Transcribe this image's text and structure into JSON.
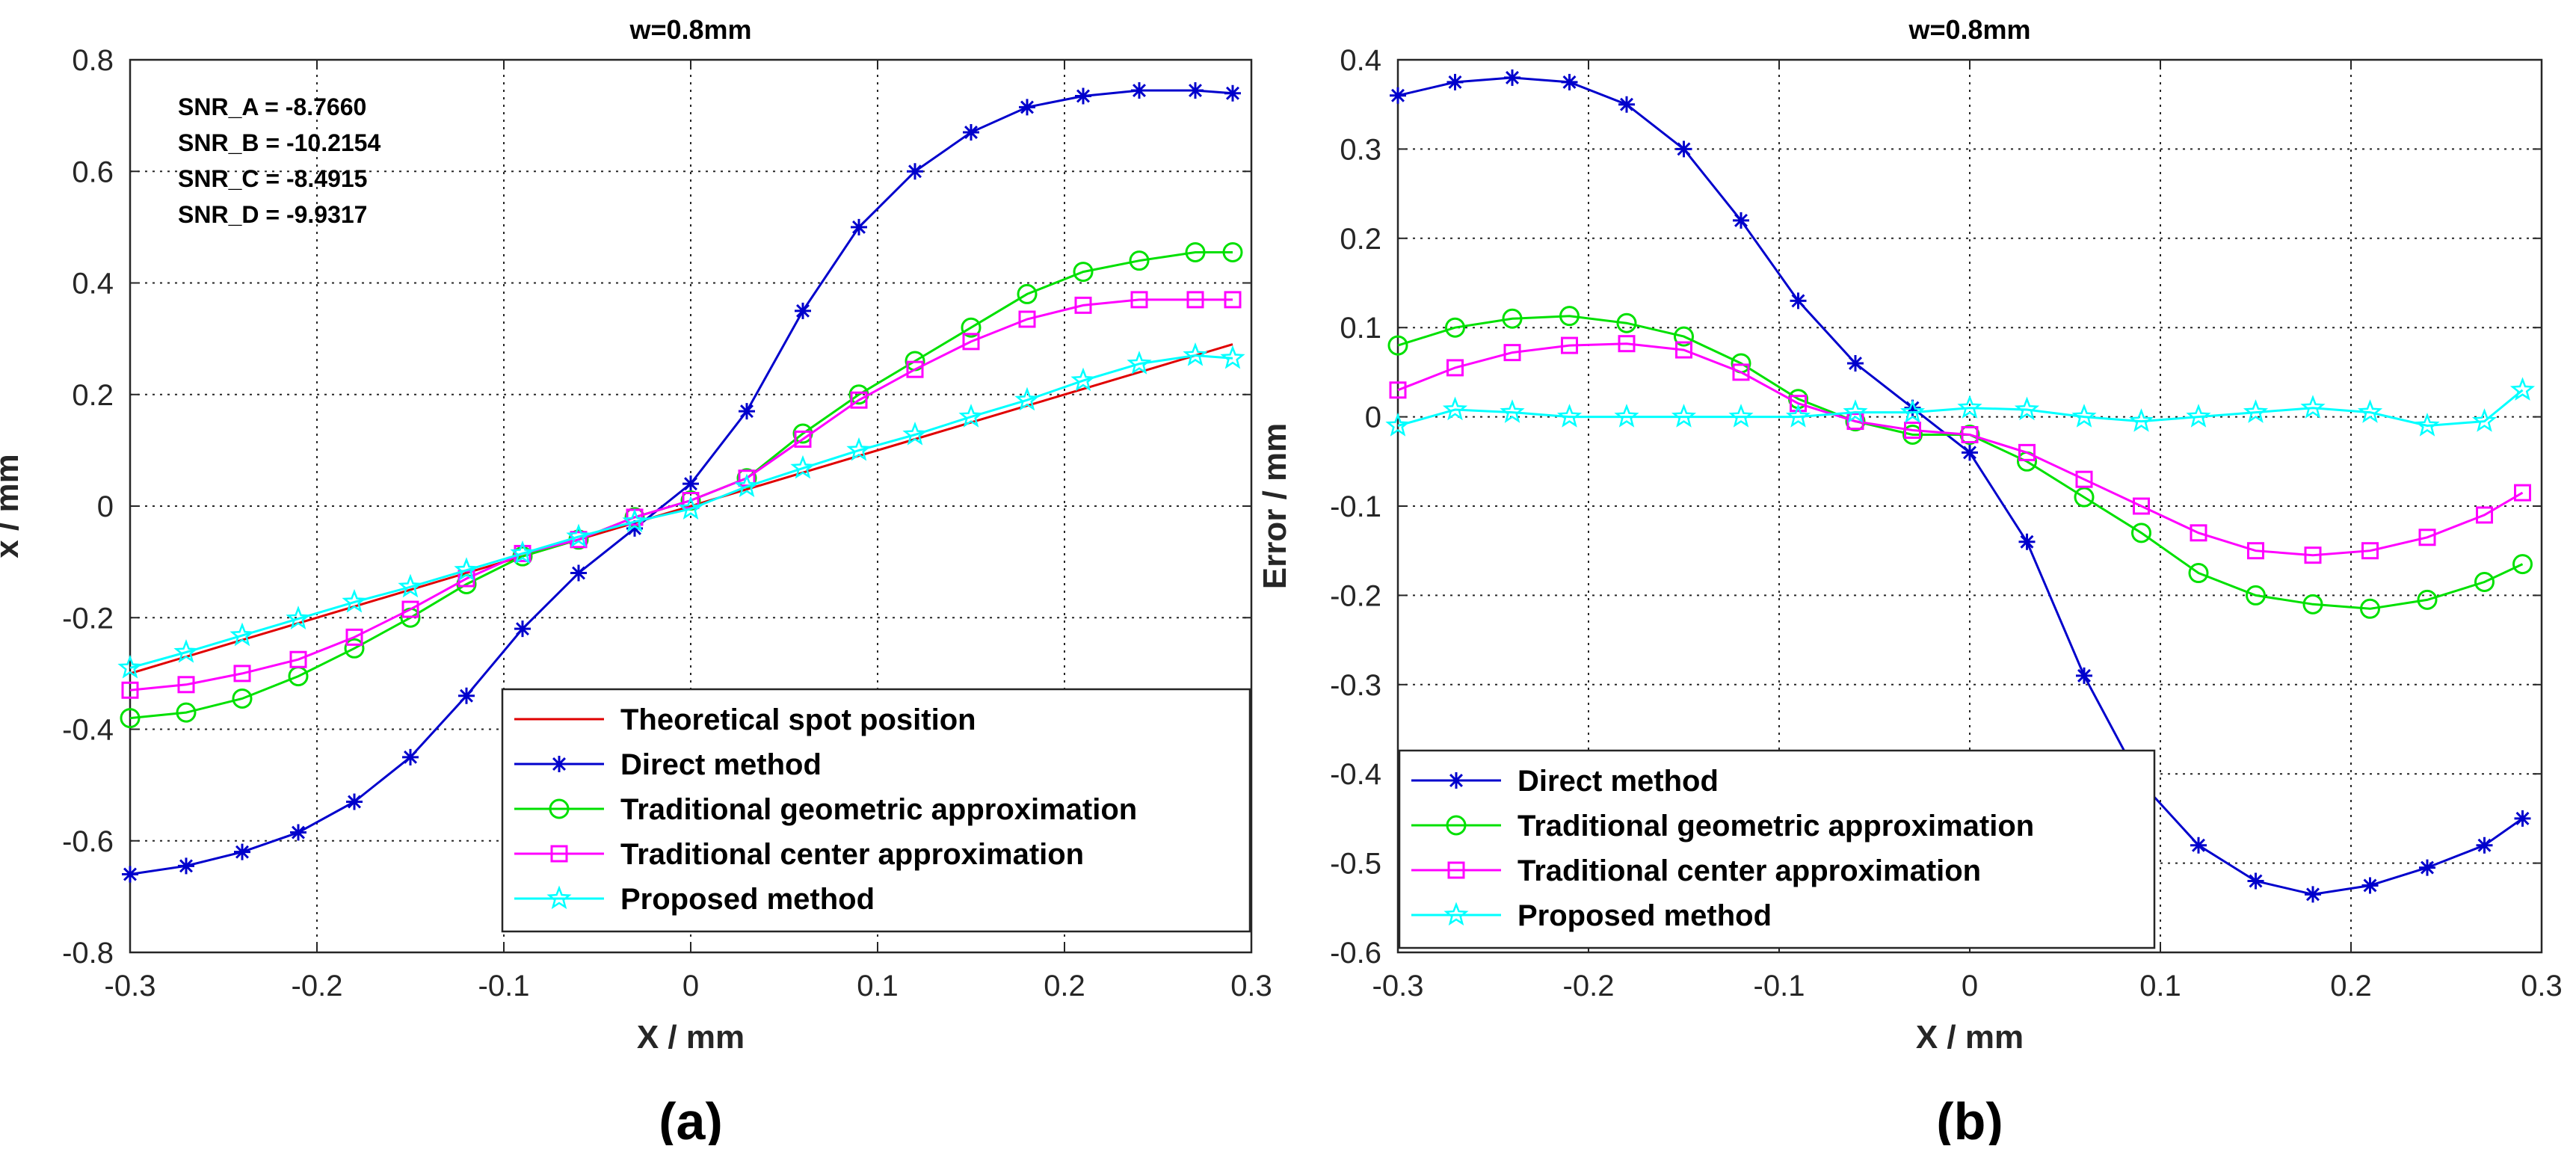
{
  "colors": {
    "theoretical": "#e00000",
    "direct": "#0000cc",
    "geometric": "#00e000",
    "center": "#ff00ff",
    "proposed": "#00ffff",
    "grid": "#262626",
    "axis": "#262626"
  },
  "chart_data": [
    {
      "type": "line",
      "panel_label": "(a)",
      "title": "w=0.8mm",
      "xlabel": "X / mm",
      "ylabel": "x / mm",
      "xlim": [
        -0.3,
        0.3
      ],
      "ylim": [
        -0.8,
        0.8
      ],
      "xticks": [
        -0.3,
        -0.2,
        -0.1,
        0,
        0.1,
        0.2,
        0.3
      ],
      "xtick_labels": [
        "-0.3",
        "-0.2",
        "-0.1",
        "0",
        "0.1",
        "0.2",
        "0.3"
      ],
      "yticks": [
        -0.8,
        -0.6,
        -0.4,
        -0.2,
        0,
        0.2,
        0.4,
        0.6,
        0.8
      ],
      "ytick_labels": [
        "-0.8",
        "-0.6",
        "-0.4",
        "-0.2",
        "0",
        "0.2",
        "0.4",
        "0.6",
        "0.8"
      ],
      "grid": true,
      "legend_position": "bottom-right",
      "annotations": [
        "SNR_A = -8.7660",
        "SNR_B = -10.2154",
        "SNR_C = -8.4915",
        "SNR_D = -9.9317"
      ],
      "x": [
        -0.3,
        -0.27,
        -0.24,
        -0.21,
        -0.18,
        -0.15,
        -0.12,
        -0.09,
        -0.06,
        -0.03,
        0,
        0.03,
        0.06,
        0.09,
        0.12,
        0.15,
        0.18,
        0.21,
        0.24,
        0.27,
        0.29
      ],
      "series": [
        {
          "name": "Theoretical spot position",
          "key": "theoretical",
          "marker": "none",
          "values": [
            -0.3,
            -0.27,
            -0.24,
            -0.21,
            -0.18,
            -0.15,
            -0.12,
            -0.09,
            -0.06,
            -0.03,
            0,
            0.03,
            0.06,
            0.09,
            0.12,
            0.15,
            0.18,
            0.21,
            0.24,
            0.27,
            0.29
          ]
        },
        {
          "name": "Direct method",
          "key": "direct",
          "marker": "asterisk",
          "values": [
            -0.66,
            -0.645,
            -0.62,
            -0.585,
            -0.53,
            -0.45,
            -0.34,
            -0.22,
            -0.12,
            -0.04,
            0.04,
            0.17,
            0.35,
            0.5,
            0.6,
            0.67,
            0.715,
            0.735,
            0.745,
            0.745,
            0.74
          ]
        },
        {
          "name": "Traditional geometric approximation",
          "key": "geometric",
          "marker": "circle",
          "values": [
            -0.38,
            -0.37,
            -0.345,
            -0.305,
            -0.255,
            -0.2,
            -0.14,
            -0.09,
            -0.06,
            -0.02,
            0.01,
            0.05,
            0.13,
            0.2,
            0.26,
            0.32,
            0.38,
            0.42,
            0.44,
            0.455,
            0.455
          ]
        },
        {
          "name": "Traditional center approximation",
          "key": "center",
          "marker": "square",
          "values": [
            -0.33,
            -0.32,
            -0.3,
            -0.275,
            -0.235,
            -0.185,
            -0.13,
            -0.085,
            -0.06,
            -0.02,
            0.01,
            0.05,
            0.12,
            0.19,
            0.245,
            0.295,
            0.335,
            0.36,
            0.37,
            0.37,
            0.37
          ]
        },
        {
          "name": "Proposed method",
          "key": "proposed",
          "marker": "pentagram",
          "values": [
            -0.29,
            -0.262,
            -0.232,
            -0.202,
            -0.172,
            -0.145,
            -0.115,
            -0.085,
            -0.055,
            -0.028,
            -0.005,
            0.035,
            0.068,
            0.1,
            0.128,
            0.16,
            0.19,
            0.225,
            0.255,
            0.27,
            0.265
          ]
        }
      ]
    },
    {
      "type": "line",
      "panel_label": "(b)",
      "title": "w=0.8mm",
      "xlabel": "X / mm",
      "ylabel": "Error / mm",
      "xlim": [
        -0.3,
        0.3
      ],
      "ylim": [
        -0.6,
        0.4
      ],
      "xticks": [
        -0.3,
        -0.2,
        -0.1,
        0,
        0.1,
        0.2,
        0.3
      ],
      "xtick_labels": [
        "-0.3",
        "-0.2",
        "-0.1",
        "0",
        "0.1",
        "0.2",
        "0.3"
      ],
      "yticks": [
        -0.6,
        -0.5,
        -0.4,
        -0.3,
        -0.2,
        -0.1,
        0,
        0.1,
        0.2,
        0.3,
        0.4
      ],
      "ytick_labels": [
        "-0.6",
        "-0.5",
        "-0.4",
        "-0.3",
        "-0.2",
        "-0.1",
        "0",
        "0.1",
        "0.2",
        "0.3",
        "0.4"
      ],
      "grid": true,
      "legend_position": "bottom-left",
      "x": [
        -0.3,
        -0.27,
        -0.24,
        -0.21,
        -0.18,
        -0.15,
        -0.12,
        -0.09,
        -0.06,
        -0.03,
        0,
        0.03,
        0.06,
        0.09,
        0.12,
        0.15,
        0.18,
        0.21,
        0.24,
        0.27,
        0.29
      ],
      "series": [
        {
          "name": "Direct method",
          "key": "direct",
          "marker": "asterisk",
          "values": [
            0.36,
            0.375,
            0.38,
            0.375,
            0.35,
            0.3,
            0.22,
            0.13,
            0.06,
            0.01,
            -0.04,
            -0.14,
            -0.29,
            -0.41,
            -0.48,
            -0.52,
            -0.535,
            -0.525,
            -0.505,
            -0.48,
            -0.45
          ]
        },
        {
          "name": "Traditional geometric approximation",
          "key": "geometric",
          "marker": "circle",
          "values": [
            0.08,
            0.1,
            0.11,
            0.113,
            0.105,
            0.09,
            0.06,
            0.02,
            -0.005,
            -0.02,
            -0.02,
            -0.05,
            -0.09,
            -0.13,
            -0.175,
            -0.2,
            -0.21,
            -0.215,
            -0.205,
            -0.185,
            -0.165
          ]
        },
        {
          "name": "Traditional center approximation",
          "key": "center",
          "marker": "square",
          "values": [
            0.03,
            0.055,
            0.072,
            0.08,
            0.082,
            0.075,
            0.05,
            0.015,
            -0.005,
            -0.015,
            -0.02,
            -0.04,
            -0.07,
            -0.1,
            -0.13,
            -0.15,
            -0.155,
            -0.15,
            -0.135,
            -0.11,
            -0.085
          ]
        },
        {
          "name": "Proposed method",
          "key": "proposed",
          "marker": "pentagram",
          "values": [
            -0.01,
            0.008,
            0.005,
            0.0,
            0.0,
            0.0,
            0.0,
            0.0,
            0.005,
            0.005,
            0.01,
            0.008,
            0.0,
            -0.005,
            0.0,
            0.005,
            0.01,
            0.005,
            -0.01,
            -0.005,
            0.03
          ]
        }
      ]
    }
  ]
}
